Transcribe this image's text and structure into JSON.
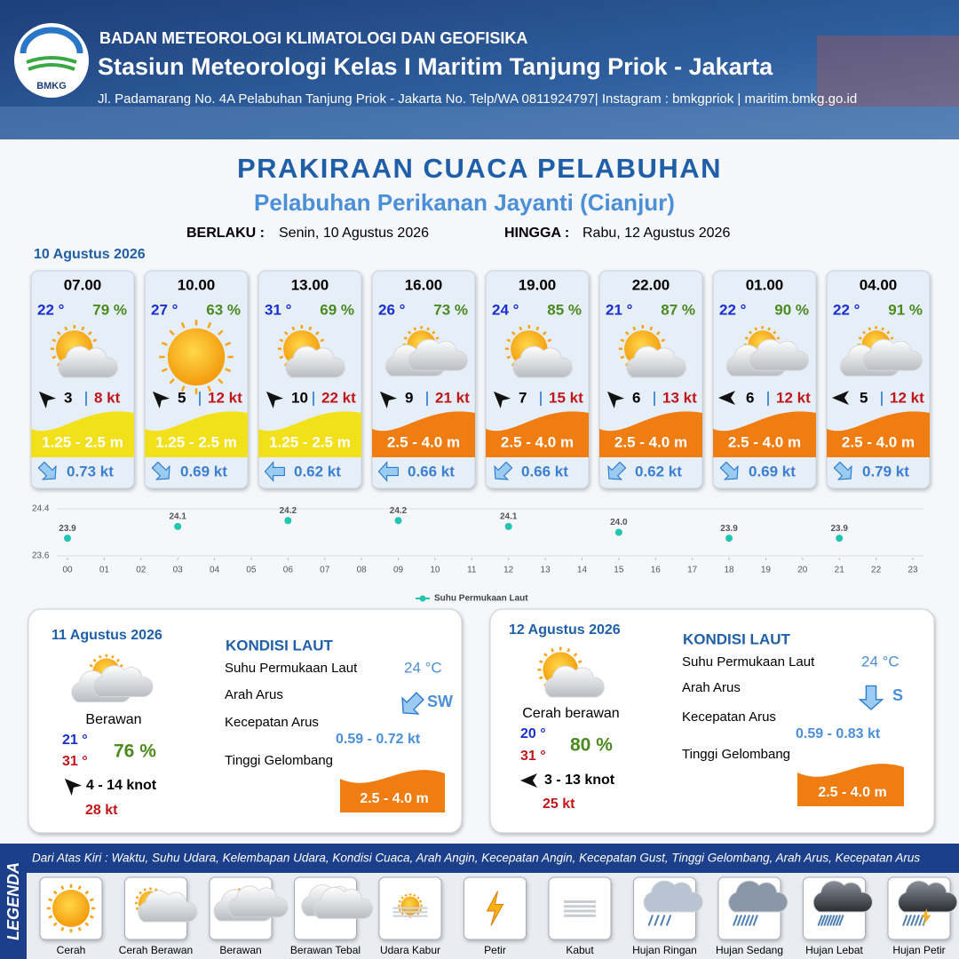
{
  "header": {
    "logo": "BMKG",
    "org": "BADAN METEOROLOGI KLIMATOLOGI DAN GEOFISIKA",
    "station": "Stasiun Meteorologi Kelas I Maritim Tanjung Priok - Jakarta",
    "address": "Jl. Padamarang No. 4A Pelabuhan Tanjung Priok - Jakarta No. Telp/WA 0811924797| Instagram : bmkgpriok | maritim.bmkg.go.id"
  },
  "title": "PRAKIRAAN CUACA PELABUHAN",
  "subtitle": "Pelabuhan Perikanan Jayanti (Cianjur)",
  "validity": {
    "from_label": "BERLAKU :",
    "from": "Senin, 10 Agustus 2026",
    "to_label": "HINGGA :",
    "to": "Rabu, 12 Agustus 2026"
  },
  "day1": {
    "date": "10 Agustus 2026",
    "forecasts": [
      {
        "time": "07.00",
        "temp": "22 °",
        "humidity": "79 %",
        "wind": "3",
        "gust": "8 kt",
        "wave": "1.25 - 2.5 m",
        "wave_color": "#f2e01a",
        "current": "0.73 kt"
      },
      {
        "time": "10.00",
        "temp": "27 °",
        "humidity": "63 %",
        "wind": "5",
        "gust": "12 kt",
        "wave": "1.25 - 2.5 m",
        "wave_color": "#f2e01a",
        "current": "0.69 kt"
      },
      {
        "time": "13.00",
        "temp": "31 °",
        "humidity": "69 %",
        "wind": "10",
        "gust": "22 kt",
        "wave": "1.25 - 2.5 m",
        "wave_color": "#f2e01a",
        "current": "0.62 kt"
      },
      {
        "time": "16.00",
        "temp": "26 °",
        "humidity": "73 %",
        "wind": "9",
        "gust": "21 kt",
        "wave": "2.5 - 4.0 m",
        "wave_color": "#f07d12",
        "current": "0.66 kt"
      },
      {
        "time": "19.00",
        "temp": "24 °",
        "humidity": "85 %",
        "wind": "7",
        "gust": "15 kt",
        "wave": "2.5 - 4.0 m",
        "wave_color": "#f07d12",
        "current": "0.66 kt"
      },
      {
        "time": "22.00",
        "temp": "21 °",
        "humidity": "87 %",
        "wind": "6",
        "gust": "13 kt",
        "wave": "2.5 - 4.0 m",
        "wave_color": "#f07d12",
        "current": "0.62 kt"
      },
      {
        "time": "01.00",
        "temp": "22 °",
        "humidity": "90 %",
        "wind": "6",
        "gust": "12 kt",
        "wave": "2.5 - 4.0 m",
        "wave_color": "#f07d12",
        "current": "0.69 kt"
      },
      {
        "time": "04.00",
        "temp": "22 °",
        "humidity": "91 %",
        "wind": "5",
        "gust": "12 kt",
        "wave": "2.5 - 4.0 m",
        "wave_color": "#f07d12",
        "current": "0.79 kt"
      }
    ]
  },
  "sst_chart": {
    "type": "scatter",
    "color": "#22c5b0",
    "series_name": "Suhu Permukaan Laut",
    "x": [
      0,
      3,
      6,
      9,
      12,
      15,
      18,
      21
    ],
    "values": [
      23.9,
      24.1,
      24.2,
      24.2,
      24.1,
      24.0,
      23.9,
      23.9
    ],
    "value_labels": [
      "23.9",
      "24.1",
      "24.2",
      "24.2",
      "24.1",
      "24.0",
      "23.9",
      "23.9"
    ],
    "xlim": [
      0,
      23
    ],
    "xticks": [
      {
        "value": 0,
        "label": "00"
      },
      {
        "value": 1,
        "label": "01"
      },
      {
        "value": 2,
        "label": "02"
      },
      {
        "value": 3,
        "label": "03"
      },
      {
        "value": 4,
        "label": "04"
      },
      {
        "value": 5,
        "label": "05"
      },
      {
        "value": 6,
        "label": "06"
      },
      {
        "value": 7,
        "label": "07"
      },
      {
        "value": 8,
        "label": "08"
      },
      {
        "value": 9,
        "label": "09"
      },
      10,
      11,
      12,
      13,
      14,
      15,
      16,
      17,
      18,
      19,
      20,
      21,
      22,
      23
    ],
    "ylim": [
      23.6,
      24.4
    ],
    "yticks": [
      23.6,
      24.4
    ],
    "grid": true
  },
  "days": [
    {
      "date": "11 Agustus 2026",
      "weather": "Berawan",
      "tmin": "21 °",
      "tmax": "31 °",
      "humidity": "76 %",
      "wind": "4  - 14 knot",
      "gust": "28 kt",
      "sea": {
        "title": "KONDISI LAUT",
        "sst_label": "Suhu Permukaan Laut",
        "sst": "24 °C",
        "dir_label": "Arah Arus",
        "dir": "SW",
        "speed_label": "Kecepatan Arus",
        "speed": "0.59  - 0.72 kt",
        "wave_label": "Tinggi Gelombang",
        "wave": "2.5 - 4.0 m"
      }
    },
    {
      "date": "12 Agustus 2026",
      "weather": "Cerah berawan",
      "tmin": "20 °",
      "tmax": "31 °",
      "humidity": "80 %",
      "wind": "3  - 13 knot",
      "gust": "25 kt",
      "sea": {
        "title": "KONDISI LAUT",
        "sst_label": "Suhu Permukaan Laut",
        "sst": "24 °C",
        "dir_label": "Arah Arus",
        "dir": "S",
        "speed_label": "Kecepatan Arus",
        "speed": "0.59 - 0.83 kt",
        "wave_label": "Tinggi Gelombang",
        "wave": "2.5 - 4.0 m"
      }
    }
  ],
  "legend": {
    "title": "LEGENDA",
    "description": "Dari Atas Kiri : Waktu, Suhu Udara, Kelembapan Udara, Kondisi Cuaca, Arah Angin, Kecepatan Angin, Kecepatan Gust, Tinggi Gelombang, Arah Arus, Kecepatan Arus",
    "items": [
      "Cerah",
      "Cerah Berawan",
      "Berawan",
      "Berawan Tebal",
      "Udara Kabur",
      "Petir",
      "Kabut",
      "Hujan Ringan",
      "Hujan Sedang",
      "Hujan Lebat",
      "Hujan Petir"
    ]
  }
}
